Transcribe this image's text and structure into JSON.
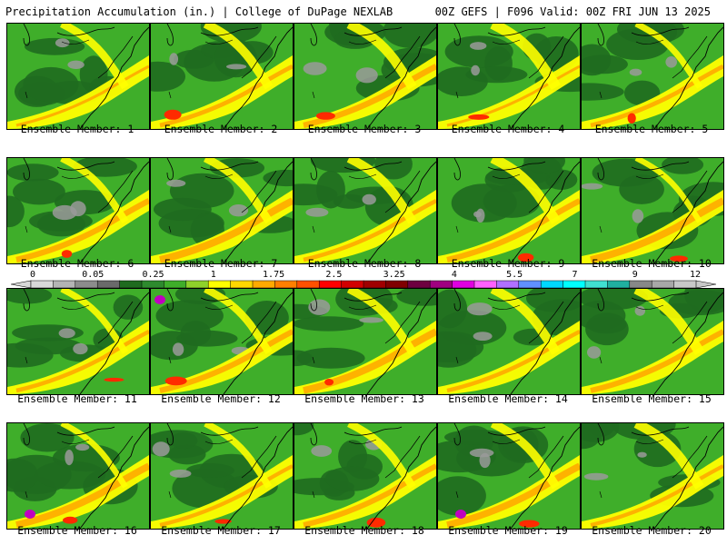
{
  "header": {
    "title_left": "Precipitation Accumulation (in.) | College of DuPage NEXLAB",
    "title_right": "00Z GEFS | F096 Valid: 00Z FRI JUN 13 2025"
  },
  "map_field": {
    "variable": "Precipitation Accumulation",
    "units": "in."
  },
  "panels": [
    {
      "label": "Ensemble Member: 1"
    },
    {
      "label": "Ensemble Member: 2"
    },
    {
      "label": "Ensemble Member: 3"
    },
    {
      "label": "Ensemble Member: 4"
    },
    {
      "label": "Ensemble Member: 5"
    },
    {
      "label": "Ensemble Member: 6"
    },
    {
      "label": "Ensemble Member: 7"
    },
    {
      "label": "Ensemble Member: 8"
    },
    {
      "label": "Ensemble Member: 9"
    },
    {
      "label": "Ensemble Member: 10"
    },
    {
      "label": "Ensemble Member: 11"
    },
    {
      "label": "Ensemble Member: 12"
    },
    {
      "label": "Ensemble Member: 13"
    },
    {
      "label": "Ensemble Member: 14"
    },
    {
      "label": "Ensemble Member: 15"
    },
    {
      "label": "Ensemble Member: 16"
    },
    {
      "label": "Ensemble Member: 17"
    },
    {
      "label": "Ensemble Member: 18"
    },
    {
      "label": "Ensemble Member: 19"
    },
    {
      "label": "Ensemble Member: 20"
    }
  ],
  "colorbar": {
    "tick_labels": [
      "0",
      "0.05",
      "0.25",
      "1",
      "1.75",
      "2.5",
      "3.25",
      "4",
      "5.5",
      "7",
      "9",
      "12"
    ],
    "colors": [
      "#d8d8d8",
      "#b4b4b4",
      "#8c8c8c",
      "#6a6a6a",
      "#1f6b1f",
      "#2e8a2e",
      "#3fae2a",
      "#8fd12a",
      "#ffff00",
      "#ffd700",
      "#ffaa00",
      "#ff7f00",
      "#ff5000",
      "#ff0000",
      "#d20000",
      "#a00000",
      "#800000",
      "#6e0040",
      "#a00080",
      "#e000e0",
      "#ff60ff",
      "#b070ff",
      "#6090ff",
      "#00d8ff",
      "#00ffff",
      "#40e0d0",
      "#20b0a0",
      "#888888",
      "#a8a8a8",
      "#c8c8c8"
    ]
  },
  "colors": {
    "light_green": "#3fae2a",
    "dark_green": "#1f6b1f",
    "mid_green": "#2e8a2e",
    "yellow": "#ffff00",
    "orange": "#ffaa00",
    "red": "#ff2a00",
    "gray": "#9a9a9a",
    "magenta": "#c000c0"
  }
}
